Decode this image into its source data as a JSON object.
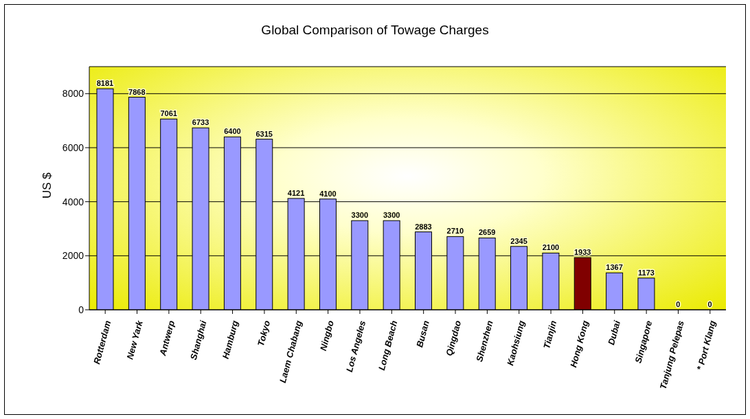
{
  "chart_data": {
    "type": "bar",
    "title": "Global Comparison of Towage Charges",
    "ylabel": "US $",
    "categories": [
      "Rotterdam",
      "New Yark",
      "Antwerp",
      "Shanghai",
      "Hamburg",
      "Tokyo",
      "Laem Chabang",
      "Ningbo",
      "Los Angeles",
      "Long Beach",
      "Busan",
      "Qingdao",
      "Shenzhen",
      "Kaohsiung",
      "Tianjin",
      "Hong Kong",
      "Dubai",
      "Singapore",
      "Tanjung Pelepas",
      "* Port Klang"
    ],
    "values": [
      8181,
      7868,
      7061,
      6733,
      6400,
      6315,
      4121,
      4100,
      3300,
      3300,
      2883,
      2710,
      2659,
      2345,
      2100,
      1933,
      1367,
      1173,
      0,
      0
    ],
    "colors": [
      "#9999ff",
      "#9999ff",
      "#9999ff",
      "#9999ff",
      "#9999ff",
      "#9999ff",
      "#9999ff",
      "#9999ff",
      "#9999ff",
      "#9999ff",
      "#9999ff",
      "#9999ff",
      "#9999ff",
      "#9999ff",
      "#9999ff",
      "#800000",
      "#9999ff",
      "#9999ff",
      "#9999ff",
      "#9999ff"
    ],
    "ylim": [
      0,
      9000
    ],
    "yticks": [
      0,
      2000,
      4000,
      6000,
      8000
    ],
    "grid": "y",
    "data_labels": true,
    "legend": false
  }
}
